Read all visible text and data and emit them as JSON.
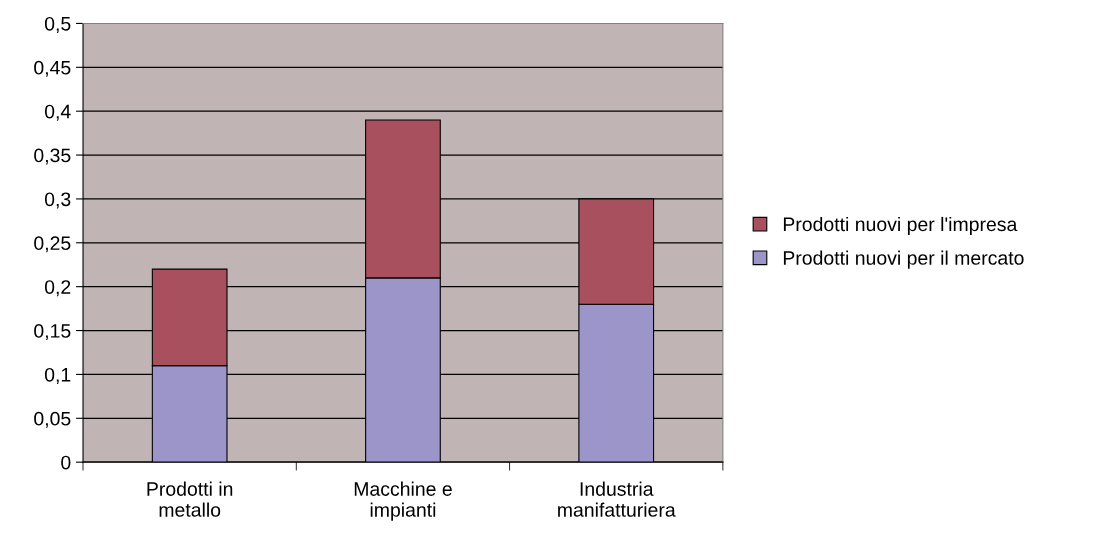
{
  "chart_data": {
    "type": "bar",
    "stacked": true,
    "categories": [
      "Prodotti in\nmetallo",
      "Macchine e\nimpianti",
      "Industria\nmanifatturiera"
    ],
    "series": [
      {
        "name": "Prodotti nuovi per il mercato",
        "color": "#9b95c9",
        "values": [
          0.11,
          0.21,
          0.18
        ]
      },
      {
        "name": "Prodotti nuovi per l'impresa",
        "color": "#a8505e",
        "values": [
          0.11,
          0.18,
          0.12
        ]
      }
    ],
    "ylim": [
      0,
      0.5
    ],
    "yticks": [
      0,
      {
        "value": 0.05,
        "label": "0,05"
      },
      {
        "value": 0.1,
        "label": "0,1"
      },
      {
        "value": 0.15,
        "label": "0,15"
      },
      {
        "value": 0.2,
        "label": "0,2"
      },
      {
        "value": 0.25,
        "label": "0,25"
      },
      {
        "value": 0.3,
        "label": "0,3"
      },
      {
        "value": 0.35,
        "label": "0,35"
      },
      {
        "value": 0.4,
        "label": "0,4"
      },
      {
        "value": 0.45,
        "label": "0,45"
      },
      {
        "value": 0.5,
        "label": "0,5"
      }
    ],
    "grid": "y",
    "legend": "right"
  }
}
